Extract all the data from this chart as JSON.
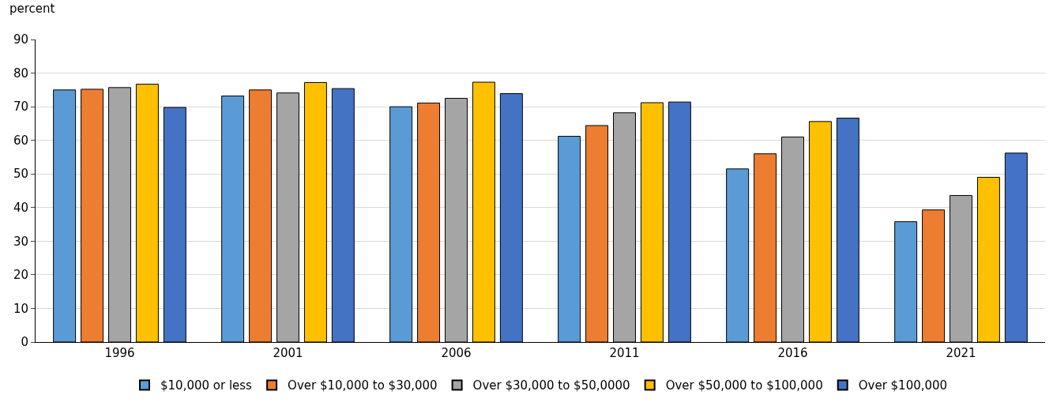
{
  "chart_data": {
    "type": "bar",
    "ylabel": "percent",
    "categories": [
      "1996",
      "2001",
      "2006",
      "2011",
      "2016",
      "2021"
    ],
    "series": [
      {
        "name": "$10,000 or less",
        "color": "#5b9bd5",
        "values": [
          75.0,
          73.2,
          70.0,
          61.2,
          51.5,
          35.8
        ]
      },
      {
        "name": "Over $10,000 to $30,000",
        "color": "#ed7d31",
        "values": [
          75.2,
          75.0,
          71.1,
          64.4,
          56.0,
          39.3
        ]
      },
      {
        "name": "Over $30,000 to $50,0000",
        "color": "#a5a5a5",
        "values": [
          75.7,
          74.1,
          72.5,
          68.2,
          61.0,
          43.6
        ]
      },
      {
        "name": "Over $50,000 to $100,000",
        "color": "#ffc000",
        "values": [
          76.7,
          77.2,
          77.3,
          71.2,
          65.6,
          49.0
        ]
      },
      {
        "name": "Over $100,000",
        "color": "#4472c4",
        "values": [
          69.8,
          75.4,
          73.9,
          71.4,
          66.6,
          56.2
        ]
      }
    ],
    "ylim": [
      0,
      90
    ],
    "yticks": [
      0,
      10,
      20,
      30,
      40,
      50,
      60,
      70,
      80,
      90
    ],
    "grid": "y",
    "legend": "bottom"
  }
}
